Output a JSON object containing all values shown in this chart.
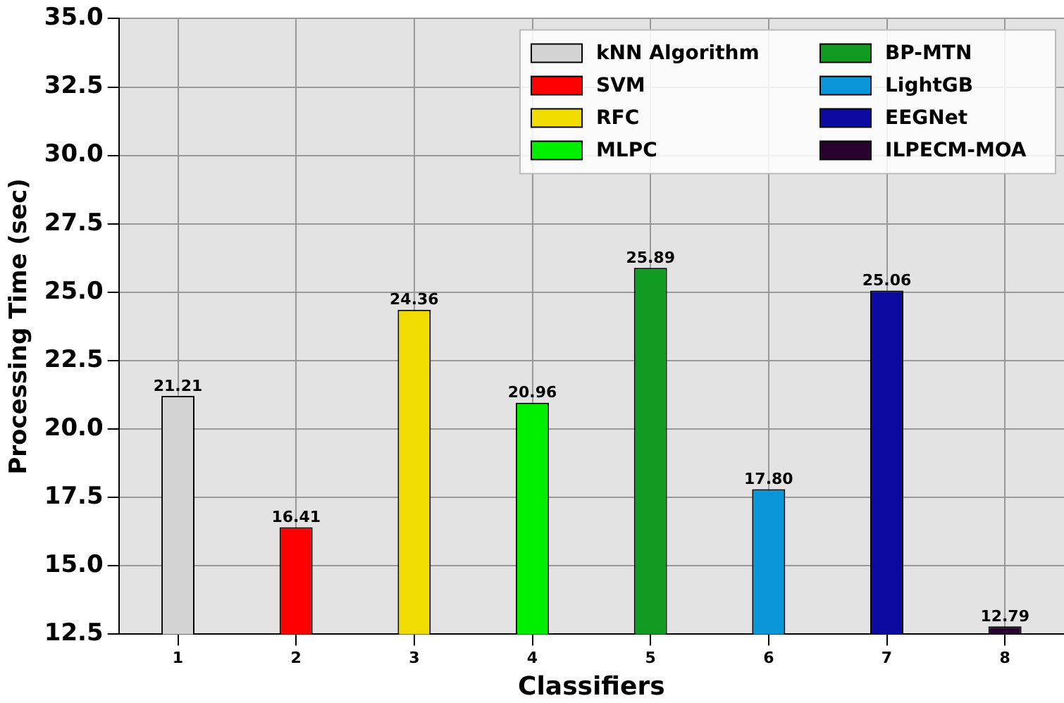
{
  "chart_data": {
    "type": "bar",
    "xlabel": "Classifiers",
    "ylabel": "Processing Time (sec)",
    "categories": [
      "1",
      "2",
      "3",
      "4",
      "5",
      "6",
      "7",
      "8"
    ],
    "series": [
      {
        "name": "kNN Algorithm",
        "color": "#d3d3d3",
        "values": [
          21.21,
          null,
          null,
          null,
          null,
          null,
          null,
          null
        ],
        "value_labels": [
          "21.21",
          null,
          null,
          null,
          null,
          null,
          null,
          null
        ]
      },
      {
        "name": "SVM",
        "color": "#ff0000",
        "values": [
          null,
          16.41,
          null,
          null,
          null,
          null,
          null,
          null
        ],
        "value_labels": [
          null,
          "16.41",
          null,
          null,
          null,
          null,
          null,
          null
        ]
      },
      {
        "name": "RFC",
        "color": "#f0dc00",
        "values": [
          null,
          null,
          24.36,
          null,
          null,
          null,
          null,
          null
        ],
        "value_labels": [
          null,
          null,
          "24.36",
          null,
          null,
          null,
          null,
          null
        ]
      },
      {
        "name": "MLPC",
        "color": "#00ee00",
        "values": [
          null,
          null,
          null,
          20.96,
          null,
          null,
          null,
          null
        ],
        "value_labels": [
          null,
          null,
          null,
          "20.96",
          null,
          null,
          null,
          null
        ]
      },
      {
        "name": "BP-MTN",
        "color": "#119a22",
        "values": [
          null,
          null,
          null,
          null,
          25.89,
          null,
          null,
          null
        ],
        "value_labels": [
          null,
          null,
          null,
          null,
          "25.89",
          null,
          null,
          null
        ]
      },
      {
        "name": "LightGB",
        "color": "#0a96d8",
        "values": [
          null,
          null,
          null,
          null,
          null,
          17.8,
          null,
          null
        ],
        "value_labels": [
          null,
          null,
          null,
          null,
          null,
          "17.80",
          null,
          null
        ]
      },
      {
        "name": "EEGNet",
        "color": "#0a0aa0",
        "values": [
          null,
          null,
          null,
          null,
          null,
          null,
          25.06,
          null
        ],
        "value_labels": [
          null,
          null,
          null,
          null,
          null,
          null,
          "25.06",
          null
        ]
      },
      {
        "name": "ILPECM-MOA",
        "color": "#2a0030",
        "values": [
          null,
          null,
          null,
          null,
          null,
          null,
          null,
          12.79
        ],
        "value_labels": [
          null,
          null,
          null,
          null,
          null,
          null,
          null,
          "12.79"
        ]
      }
    ],
    "ylim": [
      12.5,
      35
    ],
    "yticks": [
      {
        "value": 12.5,
        "label": "12.5"
      },
      {
        "value": 15,
        "label": "15.0"
      },
      {
        "value": 17.5,
        "label": "17.5"
      },
      {
        "value": 20,
        "label": "20.0"
      },
      {
        "value": 22.5,
        "label": "22.5"
      },
      {
        "value": 25,
        "label": "25.0"
      },
      {
        "value": 27.5,
        "label": "27.5"
      },
      {
        "value": 30,
        "label": "30.0"
      },
      {
        "value": 32.5,
        "label": "32.5"
      },
      {
        "value": 35,
        "label": "35.0"
      }
    ],
    "grid": true,
    "legend": "top right",
    "stacked": true
  }
}
